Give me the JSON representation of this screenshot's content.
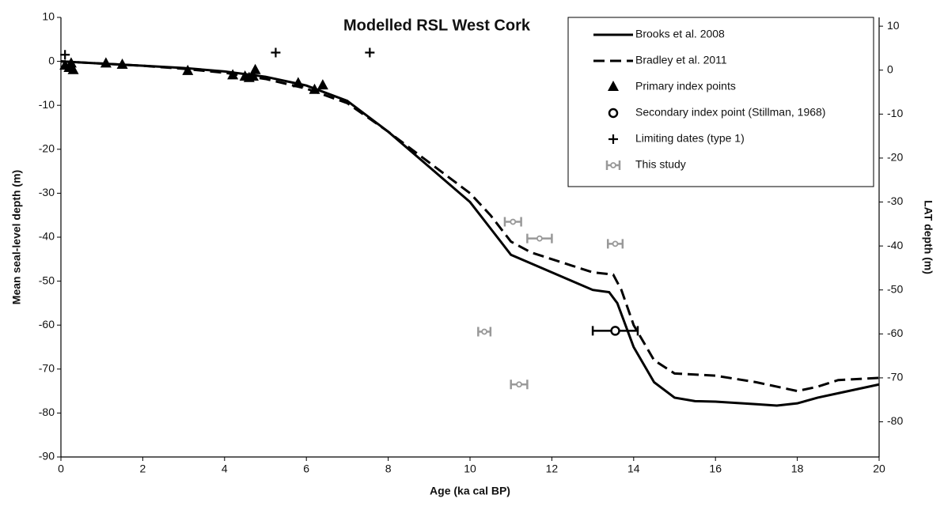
{
  "chart_data": {
    "type": "line",
    "title": "Modelled RSL West Cork",
    "xlabel": "Age (ka cal BP)",
    "ylabel": "Mean seal-level depth (m)",
    "y2label": "LAT depth (m)",
    "xlim": [
      0,
      20
    ],
    "xticks": [
      0,
      2,
      4,
      6,
      8,
      10,
      12,
      14,
      16,
      18,
      20
    ],
    "ylim": [
      -90,
      10
    ],
    "yticks": [
      10,
      0,
      -10,
      -20,
      -30,
      -40,
      -50,
      -60,
      -70,
      -80,
      -90
    ],
    "y2lim": [
      -88,
      12
    ],
    "y2ticks": [
      10,
      0,
      -10,
      -20,
      -30,
      -40,
      -50,
      -60,
      -70,
      -80
    ],
    "grid": false,
    "legend": "upper right",
    "series": [
      {
        "name": "Brooks et al. 2008",
        "color": "#000000",
        "style": "solid",
        "x": [
          0,
          1,
          2,
          3,
          4,
          5,
          6,
          7,
          8,
          9,
          10,
          10.5,
          11,
          11.5,
          12,
          12.5,
          13,
          13.4,
          13.6,
          14,
          14.5,
          15,
          15.5,
          16,
          17,
          17.5,
          18,
          18.5,
          19,
          20
        ],
        "y": [
          0,
          -0.5,
          -1,
          -1.5,
          -2.3,
          -3.5,
          -5.5,
          -9,
          -16,
          -24,
          -32,
          -38,
          -44,
          -46,
          -48,
          -50,
          -52,
          -52.5,
          -55,
          -65,
          -73,
          -76.5,
          -77.3,
          -77.4,
          -78,
          -78.3,
          -77.8,
          -76.5,
          -75.5,
          -73.5
        ]
      },
      {
        "name": "Bradley et al. 2011",
        "color": "#000000",
        "style": "dashed",
        "x": [
          0,
          1,
          2,
          3,
          4,
          5,
          6,
          7,
          8,
          9,
          10,
          10.5,
          11,
          11.5,
          12,
          12.5,
          13,
          13.5,
          13.7,
          14,
          14.5,
          15,
          16,
          17,
          18,
          18.5,
          19,
          20
        ],
        "y": [
          0,
          -0.5,
          -1,
          -1.7,
          -2.6,
          -4,
          -6.2,
          -9.5,
          -16,
          -23,
          -30,
          -35,
          -41,
          -43.5,
          -45,
          -46.5,
          -48,
          -48.5,
          -52,
          -60,
          -68,
          -71,
          -71.5,
          -73,
          -75,
          -74,
          -72.5,
          -72
        ]
      },
      {
        "name": "Primary index points",
        "color": "#000000",
        "marker": "triangle",
        "x": [
          0.1,
          0.2,
          0.25,
          0.3,
          1.1,
          1.5,
          3.1,
          4.2,
          4.5,
          4.6,
          4.7,
          4.75,
          5.8,
          6.2,
          6.4
        ],
        "y": [
          -1,
          -1.5,
          -0.5,
          -2,
          -0.5,
          -0.8,
          -2.2,
          -3.2,
          -3.5,
          -3.8,
          -3.5,
          -2,
          -5,
          -6.5,
          -5.5
        ]
      },
      {
        "name": "Secondary index point (Stillman, 1968)",
        "color": "#000000",
        "marker": "circle",
        "x": [
          13.55
        ],
        "y": [
          -61.3
        ],
        "xerr": [
          0.55
        ]
      },
      {
        "name": "Limiting dates (type 1)",
        "color": "#000000",
        "marker": "plus",
        "x": [
          0.1,
          5.25,
          7.55
        ],
        "y": [
          1.5,
          2,
          2
        ]
      },
      {
        "name": "This study",
        "color": "#999999",
        "marker": "errorbar",
        "x": [
          11.05,
          11.7,
          13.55,
          10.35,
          11.2
        ],
        "y": [
          -36.5,
          -40.3,
          -41.5,
          -61.5,
          -73.5
        ],
        "xerr": [
          0.2,
          0.3,
          0.18,
          0.15,
          0.2
        ]
      }
    ]
  }
}
